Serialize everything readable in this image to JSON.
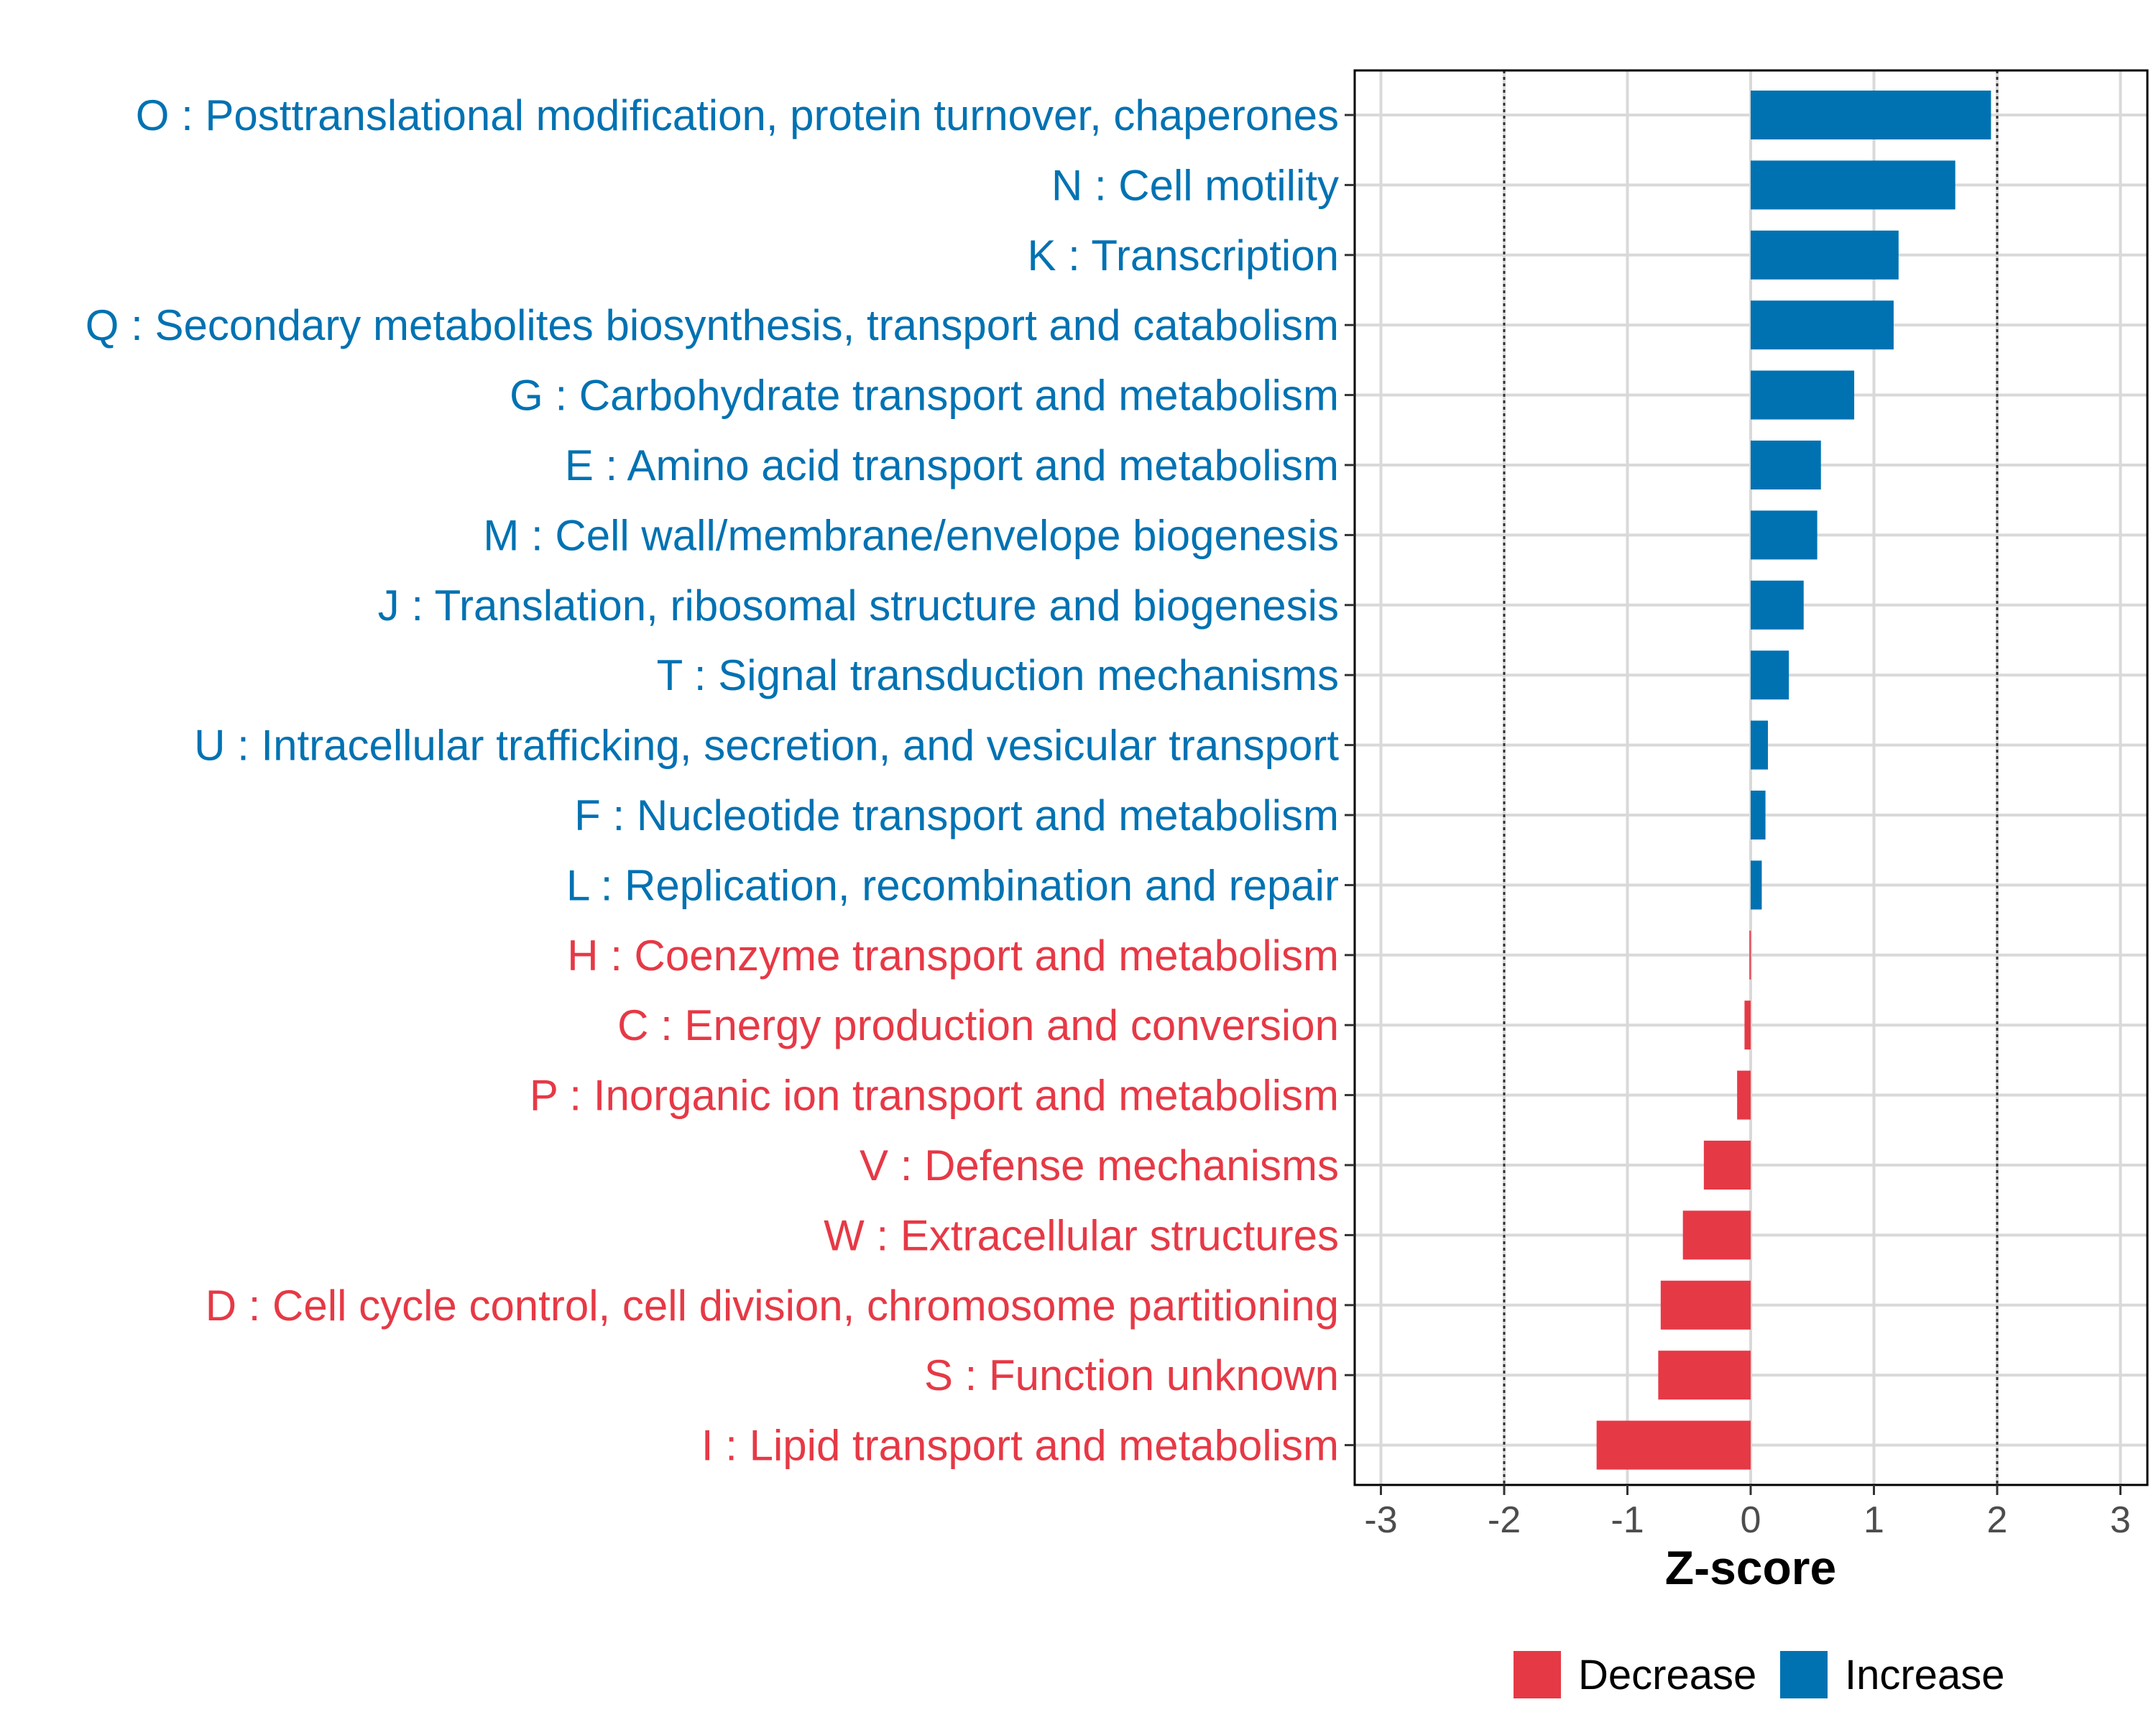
{
  "chart_data": {
    "type": "bar",
    "orientation": "horizontal",
    "xlabel": "Z-score",
    "ylabel": "",
    "xlim": [
      -3.2,
      3.2
    ],
    "xticks": [
      -3,
      -2,
      -1,
      0,
      1,
      2,
      3
    ],
    "xtick_labels": [
      "-3",
      "-2",
      "-1",
      "0",
      "1",
      "2",
      "3"
    ],
    "reference_lines": [
      -2,
      2
    ],
    "grid": true,
    "categories": [
      "O : Posttranslational modification, protein turnover, chaperones",
      "N : Cell motility",
      "K : Transcription",
      "Q : Secondary metabolites biosynthesis, transport and catabolism",
      "G : Carbohydrate transport and metabolism",
      "E : Amino acid transport and metabolism",
      "M : Cell wall/membrane/envelope biogenesis",
      "J : Translation, ribosomal structure and biogenesis",
      "T : Signal transduction mechanisms",
      "U : Intracellular trafficking, secretion, and vesicular transport",
      "F : Nucleotide transport and metabolism",
      "L : Replication, recombination and repair",
      "H : Coenzyme transport and metabolism",
      "C : Energy production and conversion",
      "P : Inorganic ion transport and metabolism",
      "V : Defense mechanisms",
      "W : Extracellular structures",
      "D : Cell cycle control, cell division, chromosome partitioning",
      "S : Function unknown",
      "I : Lipid transport and metabolism"
    ],
    "values": [
      1.95,
      1.66,
      1.2,
      1.16,
      0.84,
      0.57,
      0.54,
      0.43,
      0.31,
      0.14,
      0.12,
      0.09,
      -0.01,
      -0.05,
      -0.11,
      -0.38,
      -0.55,
      -0.73,
      -0.75,
      -1.25
    ],
    "groups": [
      "Increase",
      "Increase",
      "Increase",
      "Increase",
      "Increase",
      "Increase",
      "Increase",
      "Increase",
      "Increase",
      "Increase",
      "Increase",
      "Increase",
      "Decrease",
      "Decrease",
      "Decrease",
      "Decrease",
      "Decrease",
      "Decrease",
      "Decrease",
      "Decrease"
    ],
    "legend": {
      "position": "bottom",
      "entries": [
        {
          "label": "Decrease",
          "color": "#e63946"
        },
        {
          "label": "Increase",
          "color": "#0072b2"
        }
      ]
    },
    "colors": {
      "Increase": "#0072b2",
      "Decrease": "#e63946"
    }
  }
}
